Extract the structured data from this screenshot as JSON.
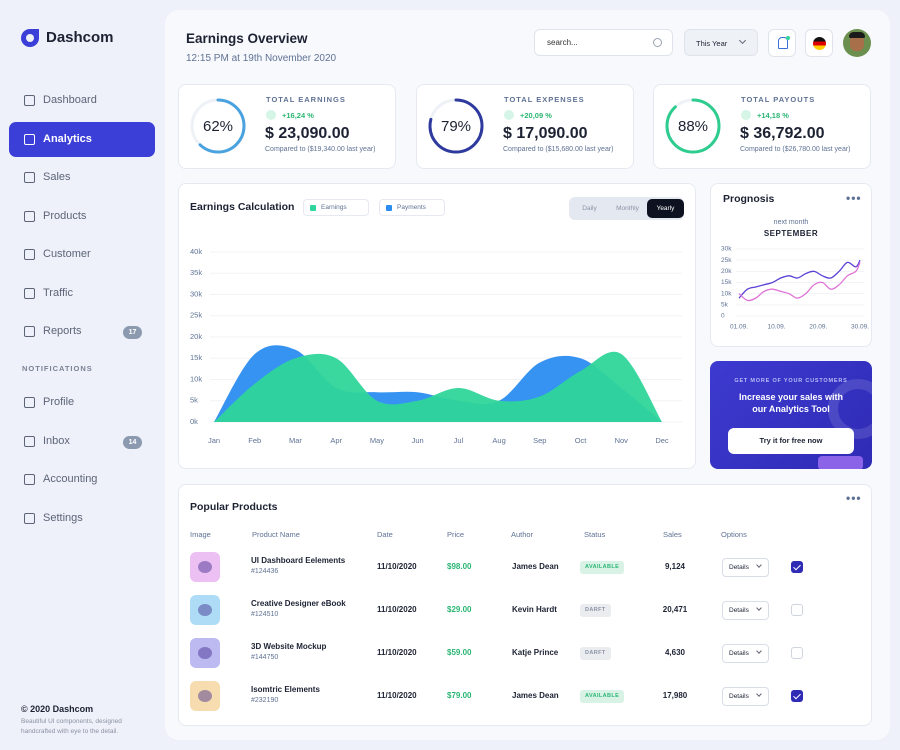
{
  "sidebar": {
    "brand": "Dashcom",
    "nav": [
      {
        "label": "Dashboard"
      },
      {
        "label": "Analytics",
        "active": true
      },
      {
        "label": "Sales"
      },
      {
        "label": "Products"
      },
      {
        "label": "Customer"
      },
      {
        "label": "Traffic"
      },
      {
        "label": "Reports",
        "badge": 17
      }
    ],
    "section": "NOTIFICATIONS",
    "nav2": [
      {
        "label": "Profile"
      },
      {
        "label": "Inbox",
        "badge": 14
      },
      {
        "label": "Accounting"
      },
      {
        "label": "Settings"
      }
    ],
    "footer": {
      "copyright": "© 2020 Dashcom",
      "text": "Beautiful UI components, designed handcrafted with eye to the detail."
    }
  },
  "header": {
    "title": "Earnings Overview",
    "subtitle": "12:15 PM at 19th November 2020",
    "search_placeholder": "search...",
    "period": "This Year"
  },
  "stats": [
    {
      "percent": {
        "value": 62,
        "label": "62%"
      },
      "color": "#4aa3df",
      "label": "TOTAL EARNINGS",
      "change": "+16,24 %",
      "amount": "$ 23,090.00",
      "note": "Compared to ($19,340.00 last year)"
    },
    {
      "percent": {
        "value": 79,
        "label": "79%"
      },
      "color": "#2e3a9e",
      "label": "TOTAL EXPENSES",
      "change": "+20,09 %",
      "amount": "$ 17,090.00",
      "note": "Compared to ($15,680.00 last year)"
    },
    {
      "percent": {
        "value": 88,
        "label": "88%"
      },
      "color": "#2ecc8f",
      "label": "TOTAL PAYOUTS",
      "change": "+14,18 %",
      "amount": "$ 36,792.00",
      "note": "Compared to ($26,780.00 last year)"
    }
  ],
  "chart_data": [
    {
      "type": "area",
      "title": "Earnings Calculation",
      "tabs": [
        "Daily",
        "Monthly",
        "Yearly"
      ],
      "active_tab": 2,
      "categories": [
        "Jan",
        "Feb",
        "Mar",
        "Apr",
        "May",
        "Jun",
        "Jul",
        "Aug",
        "Sep",
        "Oct",
        "Nov",
        "Dec"
      ],
      "series": [
        {
          "name": "Earnings",
          "color": "#2fd59a",
          "values": [
            0,
            9000,
            15000,
            15000,
            5000,
            5000,
            8000,
            5000,
            6000,
            12000,
            16000,
            0
          ]
        },
        {
          "name": "Payments",
          "color": "#2b8df0",
          "values": [
            0,
            16000,
            17000,
            8000,
            7000,
            7000,
            5000,
            5000,
            14000,
            15000,
            8000,
            0
          ]
        }
      ],
      "ylim": [
        0,
        40000
      ],
      "yticks": [
        {
          "value": 0,
          "label": "0k"
        },
        {
          "value": 5000,
          "label": "5k"
        },
        {
          "value": 10000,
          "label": "10k"
        },
        {
          "value": 15000,
          "label": "15k"
        },
        {
          "value": 20000,
          "label": "20k"
        },
        {
          "value": 25000,
          "label": "25k"
        },
        {
          "value": 30000,
          "label": "30k"
        },
        {
          "value": 35000,
          "label": "35k"
        },
        {
          "value": 40000,
          "label": "40k"
        }
      ],
      "grid": true
    },
    {
      "type": "line",
      "title": "Prognosis",
      "subtitle": "next month",
      "month": "SEPTEMBER",
      "x": [
        1,
        3,
        5,
        7,
        9,
        11,
        13,
        15,
        17,
        19,
        21,
        23,
        25,
        27,
        29,
        30
      ],
      "series": [
        {
          "color": "#5b3fd6",
          "values": [
            8000,
            12000,
            13000,
            14000,
            15000,
            17000,
            18000,
            17000,
            19000,
            20000,
            18000,
            17000,
            20000,
            24000,
            22000,
            25000
          ]
        },
        {
          "color": "#e074d6",
          "values": [
            10000,
            7000,
            8000,
            11000,
            12000,
            11000,
            10000,
            8000,
            10000,
            14000,
            15000,
            12000,
            14000,
            18000,
            20000,
            24000
          ]
        }
      ],
      "xlim": [
        1,
        30
      ],
      "xticks": [
        {
          "value": 1,
          "label": "01.09."
        },
        {
          "value": 10,
          "label": "10.09."
        },
        {
          "value": 20,
          "label": "20.09."
        },
        {
          "value": 30,
          "label": "30.09."
        }
      ],
      "ylim": [
        0,
        30000
      ],
      "yticks": [
        0,
        {
          "value": 5000,
          "label": "5k"
        },
        {
          "value": 10000,
          "label": "10k"
        },
        {
          "value": 15000,
          "label": "15k"
        },
        {
          "value": 20000,
          "label": "20k"
        },
        {
          "value": 25000,
          "label": "25k"
        },
        {
          "value": 30000,
          "label": "30k"
        }
      ],
      "grid": true
    }
  ],
  "promo": {
    "eyebrow": "GET MORE OF YOUR CUSTOMERS",
    "headline": "Increase your sales with our Analytics Tool",
    "button": "Try it for free now"
  },
  "products": {
    "title": "Popular Products",
    "columns": [
      "Image",
      "Product Name",
      "Date",
      "Price",
      "Author",
      "Status",
      "Sales",
      "Options"
    ],
    "rows": [
      {
        "image_color": "#ecc0f3",
        "name": "UI Dashboard Eelements",
        "id": "#124436",
        "date": "11/10/2020",
        "price": "$98.00",
        "author": "James Dean",
        "status": "AVAILABLE",
        "status_color": "#2bb673",
        "sales": "9,124",
        "option": "Details",
        "checked": true
      },
      {
        "image_color": "#aedcf6",
        "name": "Creative Designer eBook",
        "id": "#124510",
        "date": "11/10/2020",
        "price": "$29.00",
        "author": "Kevin Hardt",
        "status": "DARFT",
        "status_color": "#8a93a6",
        "sales": "20,471",
        "option": "Details",
        "checked": false
      },
      {
        "image_color": "#bdb9f1",
        "name": "3D Website Mockup",
        "id": "#144750",
        "date": "11/10/2020",
        "price": "$59.00",
        "author": "Katje Prince",
        "status": "DARFT",
        "status_color": "#8a93a6",
        "sales": "4,630",
        "option": "Details",
        "checked": false
      },
      {
        "image_color": "#f6dcae",
        "name": "Isomtric Elements",
        "id": "#232190",
        "date": "11/10/2020",
        "price": "$79.00",
        "author": "James Dean",
        "status": "AVAILABLE",
        "status_color": "#2bb673",
        "sales": "17,980",
        "option": "Details",
        "checked": true
      }
    ]
  }
}
